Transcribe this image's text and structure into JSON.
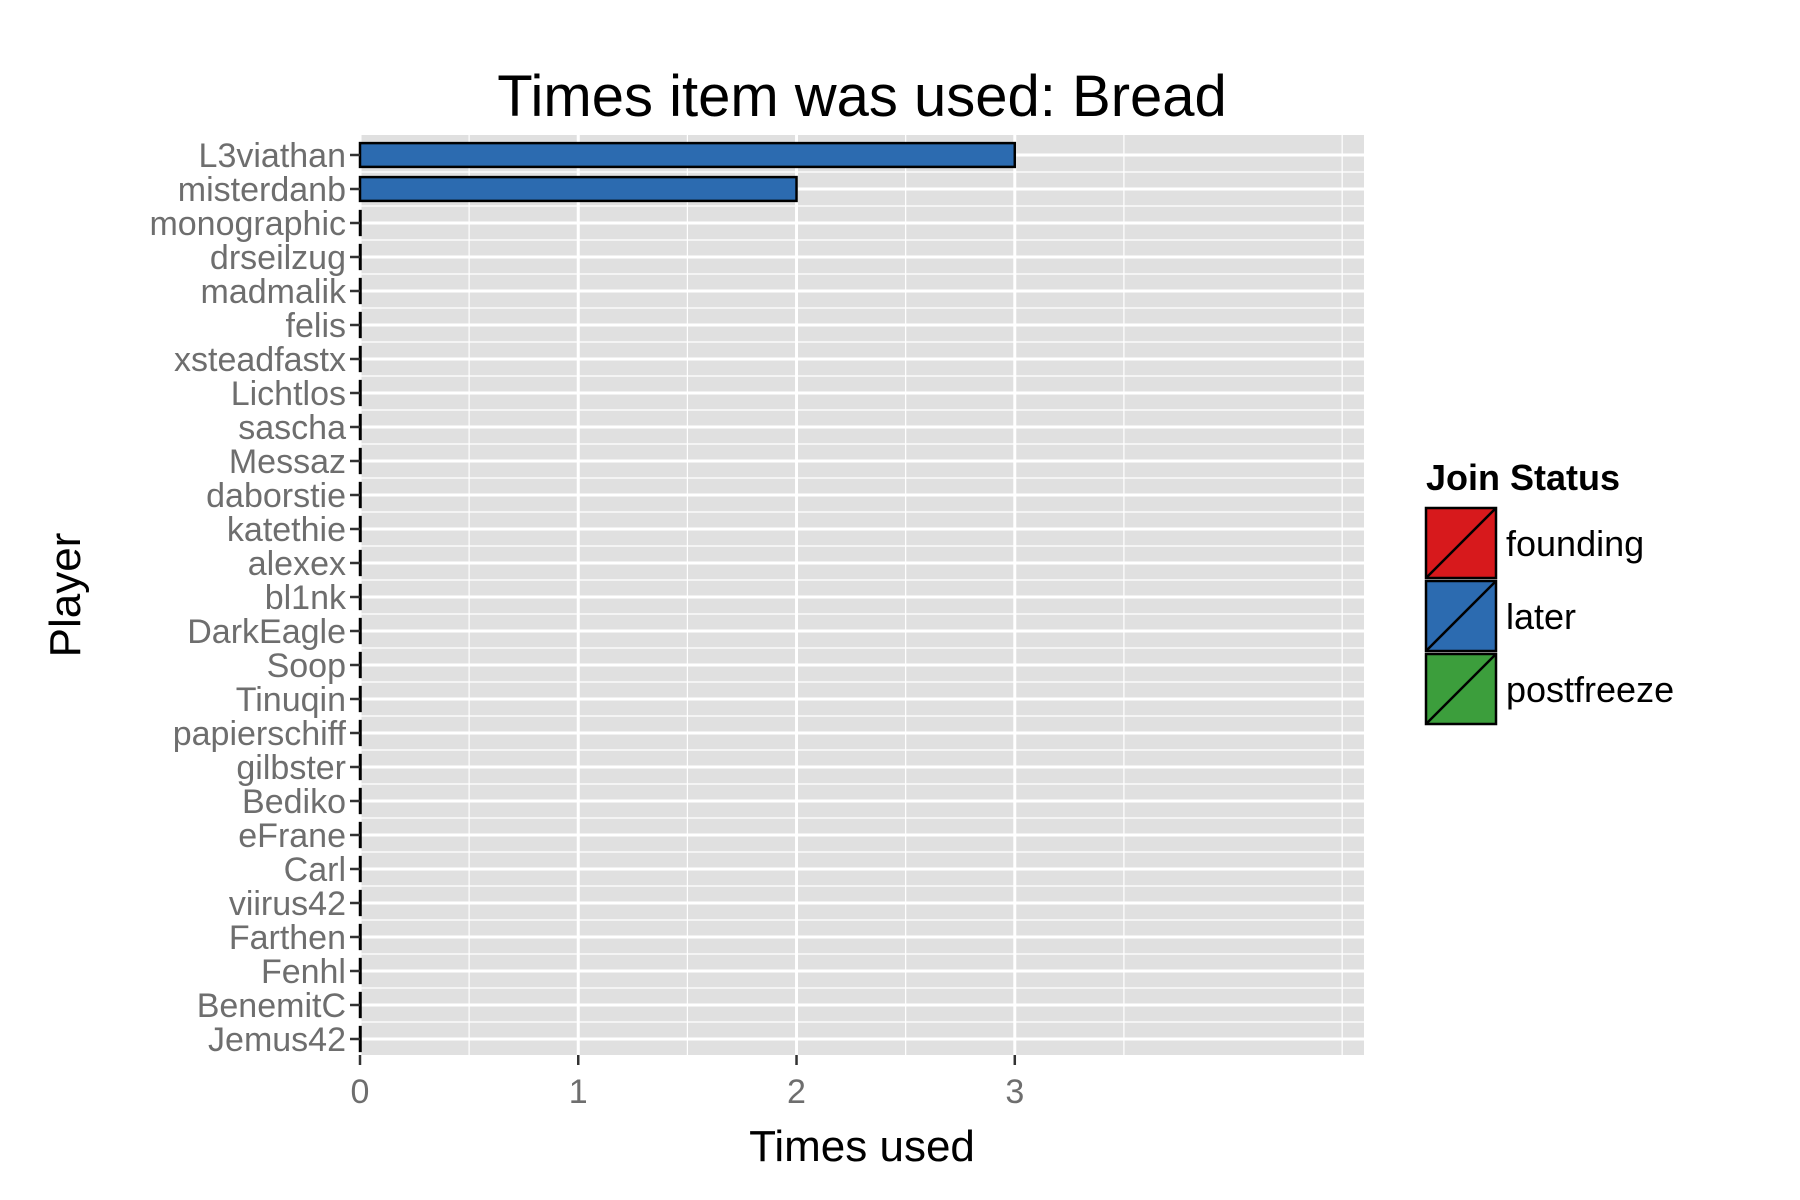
{
  "chart_data": {
    "type": "bar",
    "orientation": "horizontal",
    "title": "Times item was used: Bread",
    "xlabel": "Times used",
    "ylabel": "Player",
    "xlim": [
      0,
      4.6
    ],
    "x_ticks": [
      "0",
      "1",
      "2",
      "3"
    ],
    "grid": true,
    "legend_position": "right",
    "categories": [
      "L3viathan",
      "misterdanb",
      "monographic",
      "drseilzug",
      "madmalik",
      "felis",
      "xsteadfastx",
      "Lichtlos",
      "sascha",
      "Messaz",
      "daborstie",
      "katethie",
      "alexex",
      "bl1nk",
      "DarkEagle",
      "Soop",
      "Tinuqin",
      "papierschiff",
      "gilbster",
      "Bediko",
      "eFrane",
      "Carl",
      "viirus42",
      "Farthen",
      "Fenhl",
      "BenemitC",
      "Jemus42"
    ],
    "values": [
      3,
      2,
      0,
      0,
      0,
      0,
      0,
      0,
      0,
      0,
      0,
      0,
      0,
      0,
      0,
      0,
      0,
      0,
      0,
      0,
      0,
      0,
      0,
      0,
      0,
      0,
      0
    ],
    "join_status": [
      "later",
      "later",
      "later",
      "later",
      "later",
      "later",
      "later",
      "later",
      "later",
      "later",
      "later",
      "later",
      "later",
      "later",
      "later",
      "later",
      "later",
      "later",
      "later",
      "later",
      "later",
      "later",
      "later",
      "later",
      "later",
      "later",
      "later"
    ],
    "legend": {
      "title": "Join Status",
      "entries": [
        {
          "label": "founding",
          "color": "#d7191c"
        },
        {
          "label": "later",
          "color": "#2c6bb0"
        },
        {
          "label": "postfreeze",
          "color": "#3c9e3c"
        }
      ]
    },
    "panel_color": "#e0e0e0",
    "gridline_color": "#ffffff"
  }
}
